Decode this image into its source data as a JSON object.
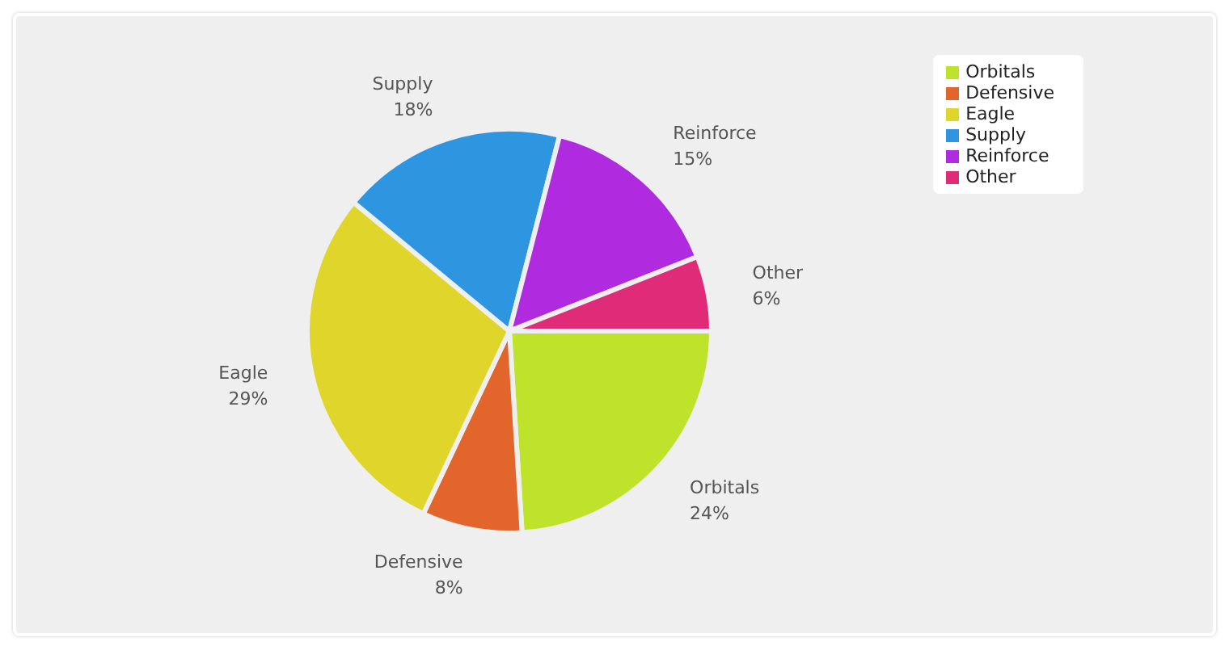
{
  "chart_data": {
    "type": "pie",
    "categories": [
      "Orbitals",
      "Defensive",
      "Eagle",
      "Supply",
      "Reinforce",
      "Other"
    ],
    "values": [
      24,
      8,
      29,
      18,
      15,
      6
    ],
    "value_labels": [
      "24%",
      "8%",
      "29%",
      "18%",
      "15%",
      "6%"
    ],
    "colors": [
      "#bfe22b",
      "#e2652b",
      "#e0d62b",
      "#2e96e0",
      "#b02be0",
      "#e02b78"
    ],
    "legend": "top right"
  }
}
